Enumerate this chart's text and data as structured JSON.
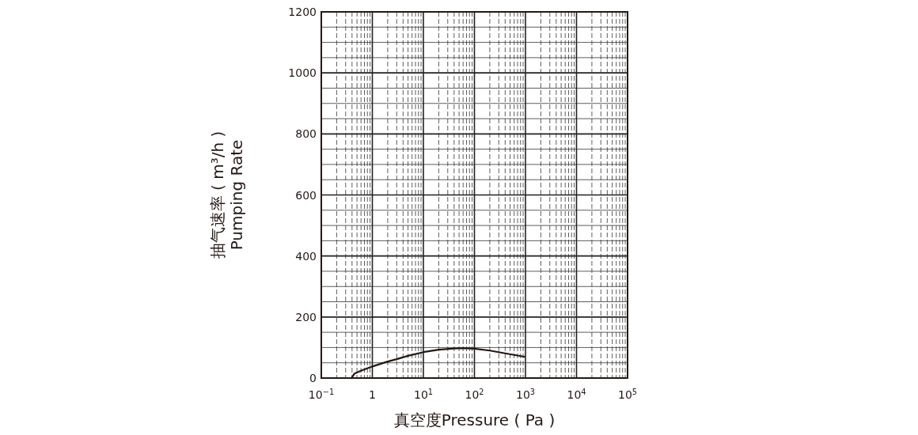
{
  "chart_data": {
    "type": "line",
    "xlabel": "真空度Pressure ( Pa )",
    "ylabel": "抽气速率 ( m³/h )\nPumping Rate",
    "log": "x",
    "grid": true,
    "xlim": [
      0.1,
      100000
    ],
    "ylim": [
      0,
      1200
    ],
    "xticks": [
      {
        "value": 0.1,
        "label": "10$^{−1}$"
      },
      {
        "value": 1,
        "label": "1"
      },
      {
        "value": 10,
        "label": "10$^{1}$"
      },
      {
        "value": 100,
        "label": "10$^{2}$"
      },
      {
        "value": 1000,
        "label": "10$^{3}$"
      },
      {
        "value": 10000,
        "label": "10$^{4}$"
      },
      {
        "value": 100000,
        "label": "10$^{5}$"
      }
    ],
    "yticks": [
      0,
      200,
      400,
      600,
      800,
      1000,
      1200
    ],
    "series": [
      {
        "color": "#231815",
        "x": [
          0.39,
          0.45,
          0.6,
          1,
          2,
          3,
          5,
          10,
          20,
          40,
          60,
          100,
          200,
          400,
          950
        ],
        "values": [
          0,
          15,
          24,
          38,
          54,
          62,
          73,
          85,
          93,
          97,
          98,
          96,
          90,
          81,
          70
        ]
      }
    ]
  }
}
